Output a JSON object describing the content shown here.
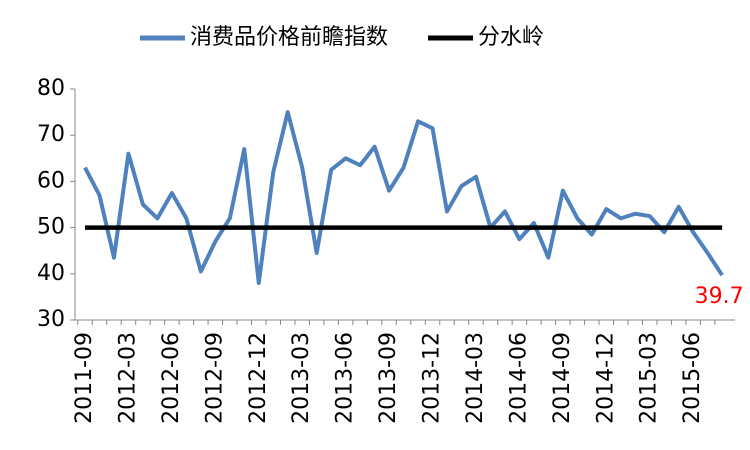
{
  "chart_data": {
    "type": "line",
    "categories": [
      "2011-09",
      null,
      null,
      "2012-03",
      null,
      null,
      "2012-06",
      null,
      null,
      "2012-09",
      null,
      null,
      "2012-12",
      null,
      null,
      "2013-03",
      null,
      null,
      "2013-06",
      null,
      null,
      "2013-09",
      null,
      null,
      "2013-12",
      null,
      null,
      "2014-03",
      null,
      null,
      "2014-06",
      null,
      null,
      "2014-09",
      null,
      null,
      "2014-12",
      null,
      null,
      "2015-03",
      null,
      null,
      "2015-06",
      null,
      null
    ],
    "series": [
      {
        "name": "消费品价格前瞻指数",
        "color": "#4f81bd",
        "values": [
          63,
          57,
          43.5,
          66,
          55,
          52,
          57.5,
          52,
          40.5,
          47,
          52,
          67,
          38,
          62,
          75,
          63,
          44.5,
          62.5,
          65,
          63.5,
          67.5,
          58,
          63,
          73,
          71.5,
          53.5,
          59,
          61,
          50,
          53.5,
          47.5,
          51,
          43.5,
          58,
          52,
          48.5,
          54,
          52,
          53,
          52.5,
          49,
          54.5,
          49,
          44.5,
          39.7
        ]
      },
      {
        "name": "分水岭",
        "color": "#000000",
        "values": [
          50,
          50,
          50,
          50,
          50,
          50,
          50,
          50,
          50,
          50,
          50,
          50,
          50,
          50,
          50,
          50,
          50,
          50,
          50,
          50,
          50,
          50,
          50,
          50,
          50,
          50,
          50,
          50,
          50,
          50,
          50,
          50,
          50,
          50,
          50,
          50,
          50,
          50,
          50,
          50,
          50,
          50,
          50,
          50,
          50
        ]
      }
    ],
    "label_color": "#ff0000",
    "ylim": [
      30,
      80
    ],
    "yticks": [
      30,
      40,
      50,
      60,
      70,
      80
    ],
    "legend": "top"
  }
}
